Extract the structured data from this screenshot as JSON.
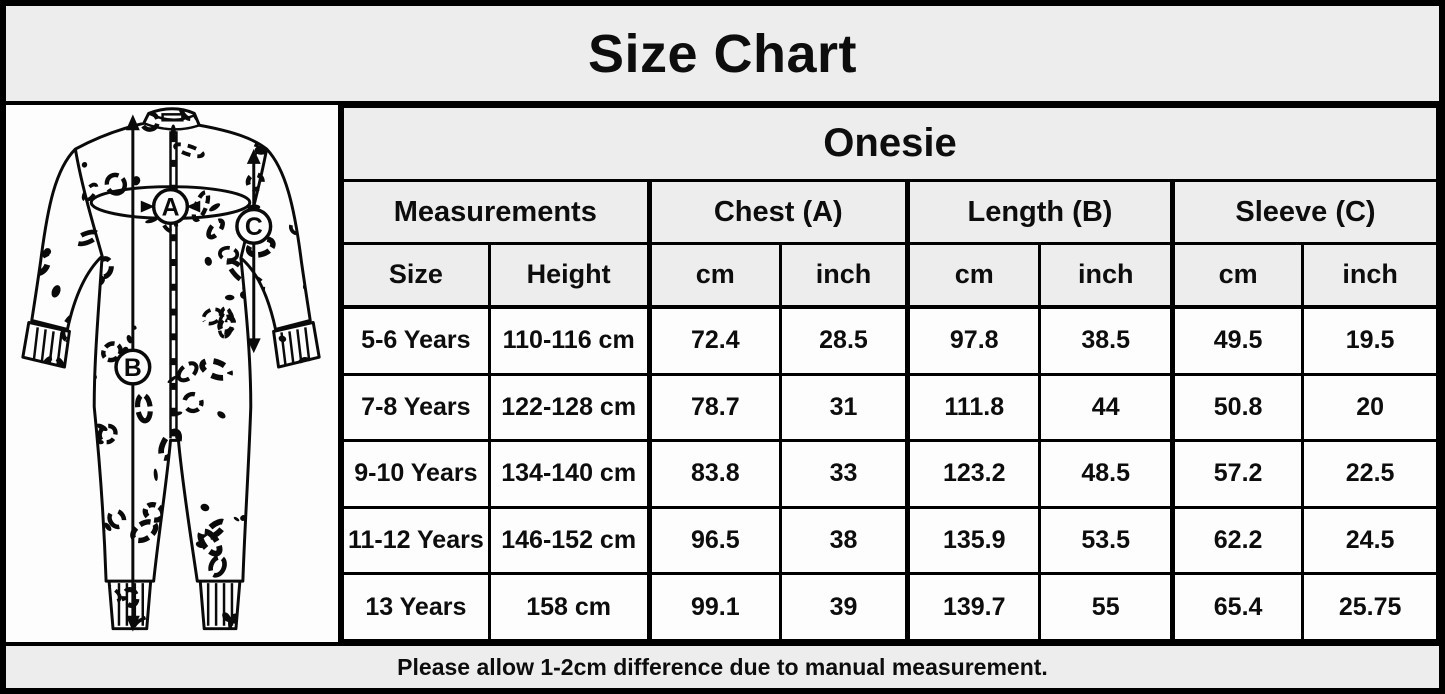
{
  "title": "Size Chart",
  "product": "Onesie",
  "table": {
    "group_headers": [
      "Measurements",
      "Chest (A)",
      "Length (B)",
      "Sleeve (C)"
    ],
    "sub_headers": [
      "Size",
      "Height",
      "cm",
      "inch",
      "cm",
      "inch",
      "cm",
      "inch"
    ],
    "rows": [
      [
        "5-6 Years",
        "110-116 cm",
        "72.4",
        "28.5",
        "97.8",
        "38.5",
        "49.5",
        "19.5"
      ],
      [
        "7-8 Years",
        "122-128 cm",
        "78.7",
        "31",
        "111.8",
        "44",
        "50.8",
        "20"
      ],
      [
        "9-10 Years",
        "134-140 cm",
        "83.8",
        "33",
        "123.2",
        "48.5",
        "57.2",
        "22.5"
      ],
      [
        "11-12 Years",
        "146-152 cm",
        "96.5",
        "38",
        "135.9",
        "53.5",
        "62.2",
        "24.5"
      ],
      [
        "13 Years",
        "158 cm",
        "99.1",
        "39",
        "139.7",
        "55",
        "65.4",
        "25.75"
      ]
    ]
  },
  "footer_note": "Please allow 1-2cm difference due to manual measurement.",
  "illustration": {
    "markers": {
      "chest": "A",
      "length": "B",
      "sleeve": "C"
    }
  },
  "colors": {
    "band_bg": "#ededed",
    "cell_bg": "#fdfdfd",
    "border": "#000000",
    "text": "#0d0d0d"
  }
}
